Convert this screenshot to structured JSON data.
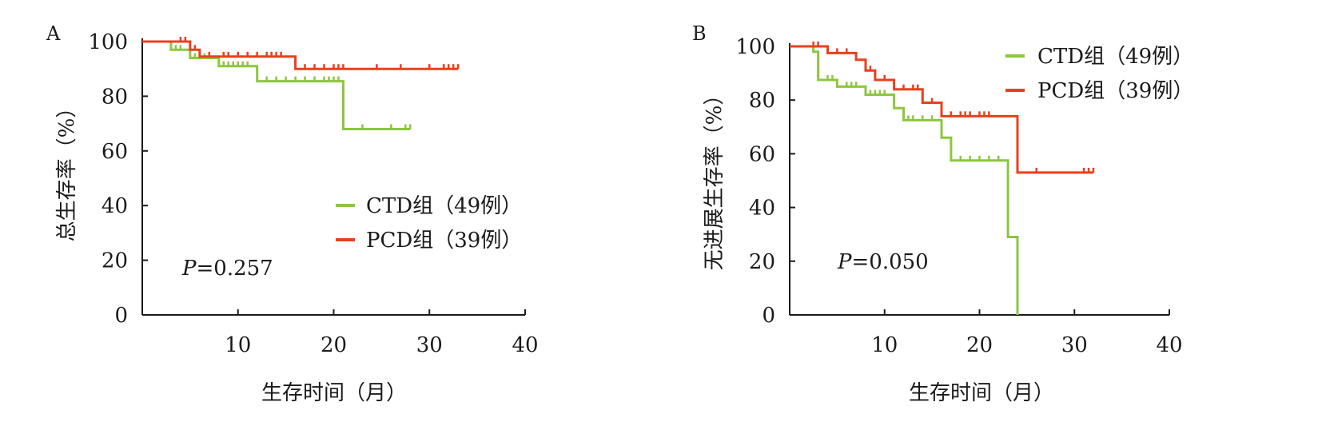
{
  "chart_data": [
    {
      "type": "line",
      "panel_label": "A",
      "xlabel": "生存时间（月）",
      "ylabel": "总生存率（%）",
      "xlim": [
        0,
        40
      ],
      "ylim": [
        0,
        100
      ],
      "xticks": [
        10,
        20,
        30,
        40
      ],
      "yticks": [
        0,
        20,
        40,
        60,
        80,
        100
      ],
      "grid": false,
      "legend_position": "center-right",
      "annotation": {
        "p_label": "P",
        "p_value": "=0.257"
      },
      "series": [
        {
          "name": "CTD组（49例）",
          "color": "#8DC63F",
          "steps": [
            [
              0,
              100
            ],
            [
              3,
              97
            ],
            [
              5,
              94
            ],
            [
              8,
              91
            ],
            [
              12,
              85.5
            ],
            [
              21,
              68
            ],
            [
              28,
              68
            ]
          ],
          "censored": [
            [
              3.5,
              97
            ],
            [
              4,
              97
            ],
            [
              5.5,
              94
            ],
            [
              6,
              94
            ],
            [
              6.5,
              94
            ],
            [
              7,
              94
            ],
            [
              8.5,
              91
            ],
            [
              9,
              91
            ],
            [
              9.5,
              91
            ],
            [
              10,
              91
            ],
            [
              10.5,
              91
            ],
            [
              11,
              91
            ],
            [
              13,
              85.5
            ],
            [
              14,
              85.5
            ],
            [
              15,
              85.5
            ],
            [
              16,
              85.5
            ],
            [
              17,
              85.5
            ],
            [
              18,
              85.5
            ],
            [
              19,
              85.5
            ],
            [
              19.5,
              85.5
            ],
            [
              20,
              85.5
            ],
            [
              20.5,
              85.5
            ],
            [
              23,
              68
            ],
            [
              26,
              68
            ],
            [
              27.5,
              68
            ],
            [
              28,
              68
            ]
          ]
        },
        {
          "name": "PCD组（39例）",
          "color": "#E8401C",
          "steps": [
            [
              0,
              100
            ],
            [
              4,
              100
            ],
            [
              5,
              97
            ],
            [
              6,
              94.5
            ],
            [
              16,
              90
            ],
            [
              33,
              90
            ]
          ],
          "censored": [
            [
              4,
              100
            ],
            [
              4.5,
              100
            ],
            [
              5.5,
              97
            ],
            [
              7,
              94.5
            ],
            [
              8.5,
              94.5
            ],
            [
              9,
              94.5
            ],
            [
              10,
              94.5
            ],
            [
              11,
              94.5
            ],
            [
              12,
              94.5
            ],
            [
              13,
              94.5
            ],
            [
              13.5,
              94.5
            ],
            [
              14,
              94.5
            ],
            [
              14.5,
              94.5
            ],
            [
              17,
              90
            ],
            [
              18,
              90
            ],
            [
              19,
              90
            ],
            [
              20,
              90
            ],
            [
              20.5,
              90
            ],
            [
              21,
              90
            ],
            [
              24.5,
              90
            ],
            [
              27,
              90
            ],
            [
              30,
              90
            ],
            [
              31.5,
              90
            ],
            [
              32,
              90
            ],
            [
              32.5,
              90
            ],
            [
              33,
              90
            ]
          ]
        }
      ]
    },
    {
      "type": "line",
      "panel_label": "B",
      "xlabel": "生存时间（月）",
      "ylabel": "无进展生存率（%）",
      "xlim": [
        0,
        40
      ],
      "ylim": [
        0,
        100
      ],
      "xticks": [
        10,
        20,
        30,
        40
      ],
      "yticks": [
        0,
        20,
        40,
        60,
        80,
        100
      ],
      "grid": false,
      "legend_position": "top-right",
      "annotation": {
        "p_label": "P",
        "p_value": "=0.050"
      },
      "series": [
        {
          "name": "CTD组（49例）",
          "color": "#8DC63F",
          "steps": [
            [
              0,
              100
            ],
            [
              2.5,
              98
            ],
            [
              3,
              87.5
            ],
            [
              5,
              85
            ],
            [
              8,
              82
            ],
            [
              11,
              77
            ],
            [
              12,
              72.5
            ],
            [
              16,
              66
            ],
            [
              17,
              57.5
            ],
            [
              23,
              29
            ],
            [
              24,
              0
            ]
          ],
          "censored": [
            [
              4,
              87.5
            ],
            [
              4.5,
              87.5
            ],
            [
              6,
              85
            ],
            [
              6.5,
              85
            ],
            [
              7,
              85
            ],
            [
              8.5,
              82
            ],
            [
              9,
              82
            ],
            [
              9.5,
              82
            ],
            [
              10,
              82
            ],
            [
              12.5,
              72.5
            ],
            [
              13,
              72.5
            ],
            [
              14,
              72.5
            ],
            [
              15,
              72.5
            ],
            [
              18,
              57.5
            ],
            [
              19,
              57.5
            ],
            [
              20,
              57.5
            ],
            [
              21,
              57.5
            ],
            [
              22,
              57.5
            ]
          ]
        },
        {
          "name": "PCD组（39例）",
          "color": "#E8401C",
          "steps": [
            [
              0,
              100
            ],
            [
              3,
              100
            ],
            [
              4,
              97.5
            ],
            [
              7,
              95
            ],
            [
              8,
              91
            ],
            [
              9,
              87.5
            ],
            [
              11,
              84
            ],
            [
              14,
              79
            ],
            [
              16,
              74
            ],
            [
              24,
              53
            ],
            [
              32,
              53
            ]
          ],
          "censored": [
            [
              2.5,
              100
            ],
            [
              3,
              100
            ],
            [
              5,
              97.5
            ],
            [
              6,
              97.5
            ],
            [
              8.5,
              91
            ],
            [
              10,
              87.5
            ],
            [
              12,
              84
            ],
            [
              13,
              84
            ],
            [
              13.5,
              84
            ],
            [
              15,
              79
            ],
            [
              17,
              74
            ],
            [
              18,
              74
            ],
            [
              18.5,
              74
            ],
            [
              19,
              74
            ],
            [
              20,
              74
            ],
            [
              20.5,
              74
            ],
            [
              21,
              74
            ],
            [
              26,
              53
            ],
            [
              31,
              53
            ],
            [
              31.5,
              53
            ],
            [
              32,
              53
            ]
          ]
        }
      ]
    }
  ]
}
